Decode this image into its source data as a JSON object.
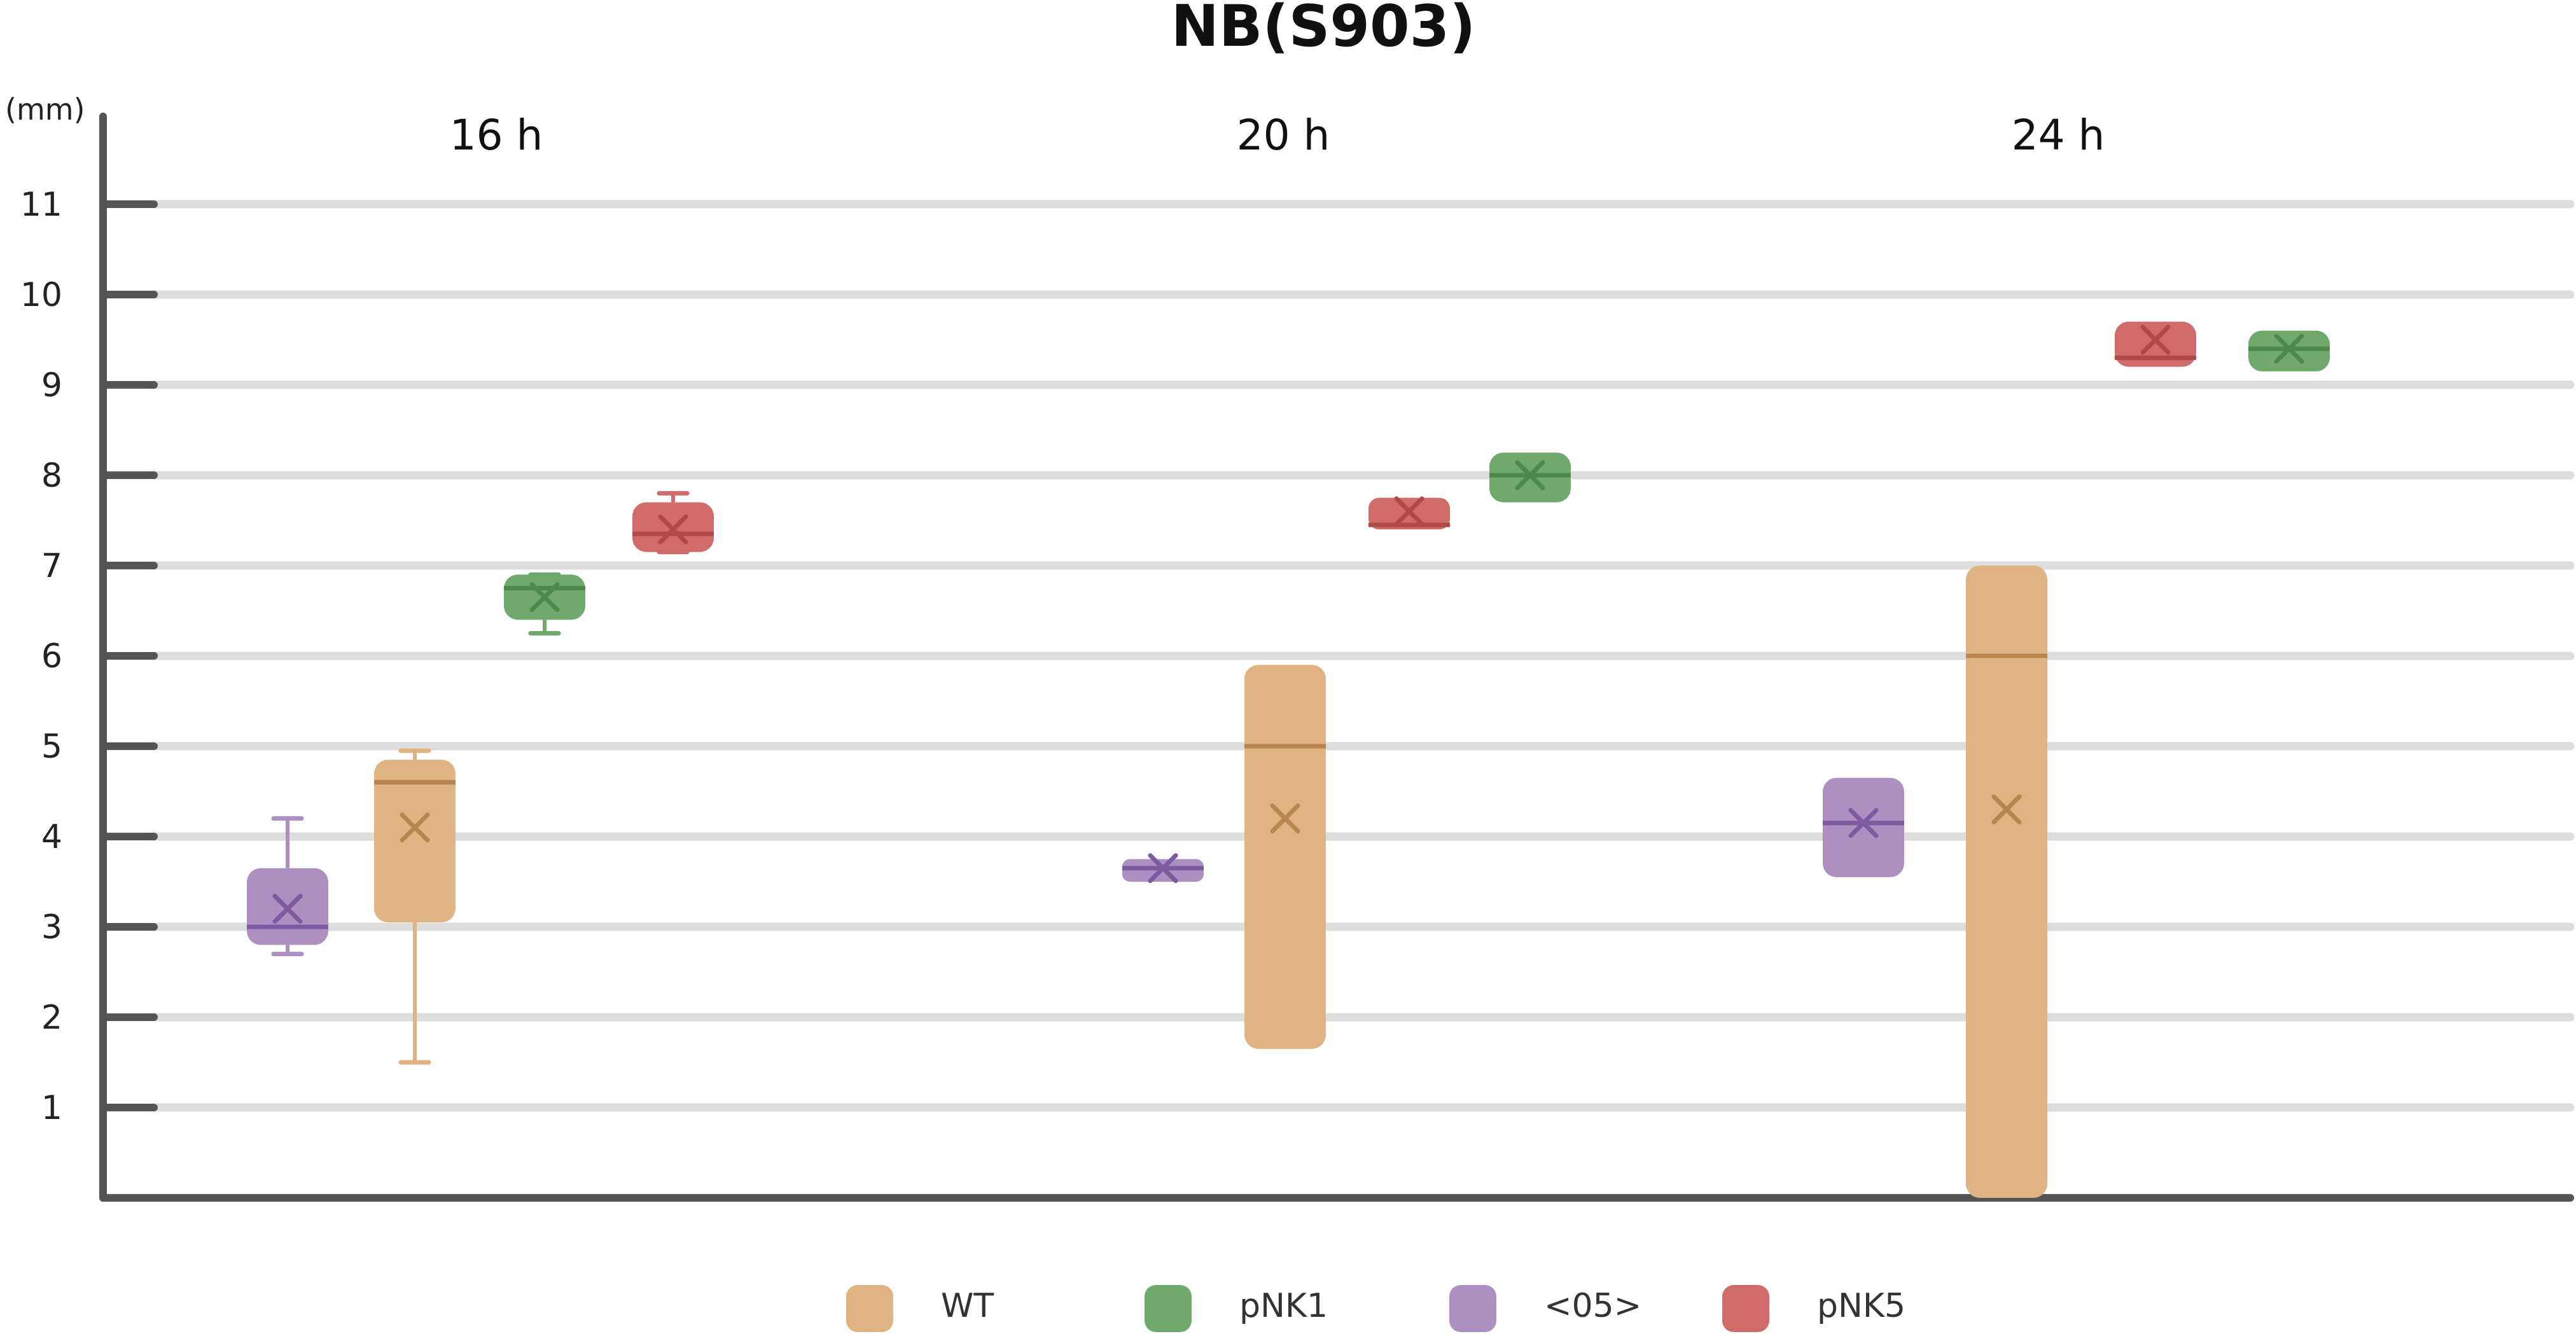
{
  "chart_data": {
    "type": "box",
    "title": "NB(S903)",
    "y_unit": "(mm)",
    "ylim": [
      0,
      11
    ],
    "yticks": [
      1,
      2,
      3,
      4,
      5,
      6,
      7,
      8,
      9,
      10,
      11
    ],
    "grid": true,
    "legend_position": "bottom",
    "groups": [
      "16 h",
      "20 h",
      "24 h"
    ],
    "series": [
      {
        "name": "WT",
        "color": "#DFB482",
        "dark": "#B88550"
      },
      {
        "name": "pNK1",
        "color": "#6FA96C",
        "dark": "#4E8A4B"
      },
      {
        "name": "<05>",
        "color": "#AE8FC2",
        "dark": "#7E5AA0"
      },
      {
        "name": "pNK5",
        "color": "#CF6C6A",
        "dark": "#B04A48"
      }
    ],
    "boxes": [
      {
        "group": "16 h",
        "series": "<05>",
        "q1": 2.8,
        "q3": 3.65,
        "median": 3.0,
        "mean": 3.2,
        "min": 2.7,
        "max": 4.2
      },
      {
        "group": "16 h",
        "series": "WT",
        "q1": 3.05,
        "q3": 4.85,
        "median": 4.6,
        "mean": 4.1,
        "min": 1.5,
        "max": 4.95
      },
      {
        "group": "16 h",
        "series": "pNK1",
        "q1": 6.4,
        "q3": 6.9,
        "median": 6.75,
        "mean": 6.65,
        "min": 6.25,
        "max": 6.9
      },
      {
        "group": "16 h",
        "series": "pNK5",
        "q1": 7.15,
        "q3": 7.7,
        "median": 7.35,
        "mean": 7.4,
        "min": 7.15,
        "max": 7.8
      },
      {
        "group": "20 h",
        "series": "<05>",
        "q1": 3.5,
        "q3": 3.75,
        "median": 3.65,
        "mean": 3.65
      },
      {
        "group": "20 h",
        "series": "WT",
        "q1": 1.65,
        "q3": 5.9,
        "median": 5.0,
        "mean": 4.2
      },
      {
        "group": "20 h",
        "series": "pNK5",
        "q1": 7.4,
        "q3": 7.75,
        "median": 7.45,
        "mean": 7.6
      },
      {
        "group": "20 h",
        "series": "pNK1",
        "q1": 7.7,
        "q3": 8.25,
        "median": 8.0,
        "mean": 8.0
      },
      {
        "group": "24 h",
        "series": "<05>",
        "q1": 3.55,
        "q3": 4.65,
        "median": 4.15,
        "mean": 4.15
      },
      {
        "group": "24 h",
        "series": "WT",
        "q1": 0.0,
        "q3": 7.0,
        "median": 6.0,
        "mean": 4.3
      },
      {
        "group": "24 h",
        "series": "pNK5",
        "q1": 9.2,
        "q3": 9.7,
        "median": 9.3,
        "mean": 9.5
      },
      {
        "group": "24 h",
        "series": "pNK1",
        "q1": 9.15,
        "q3": 9.6,
        "median": 9.4,
        "mean": 9.4
      }
    ]
  }
}
